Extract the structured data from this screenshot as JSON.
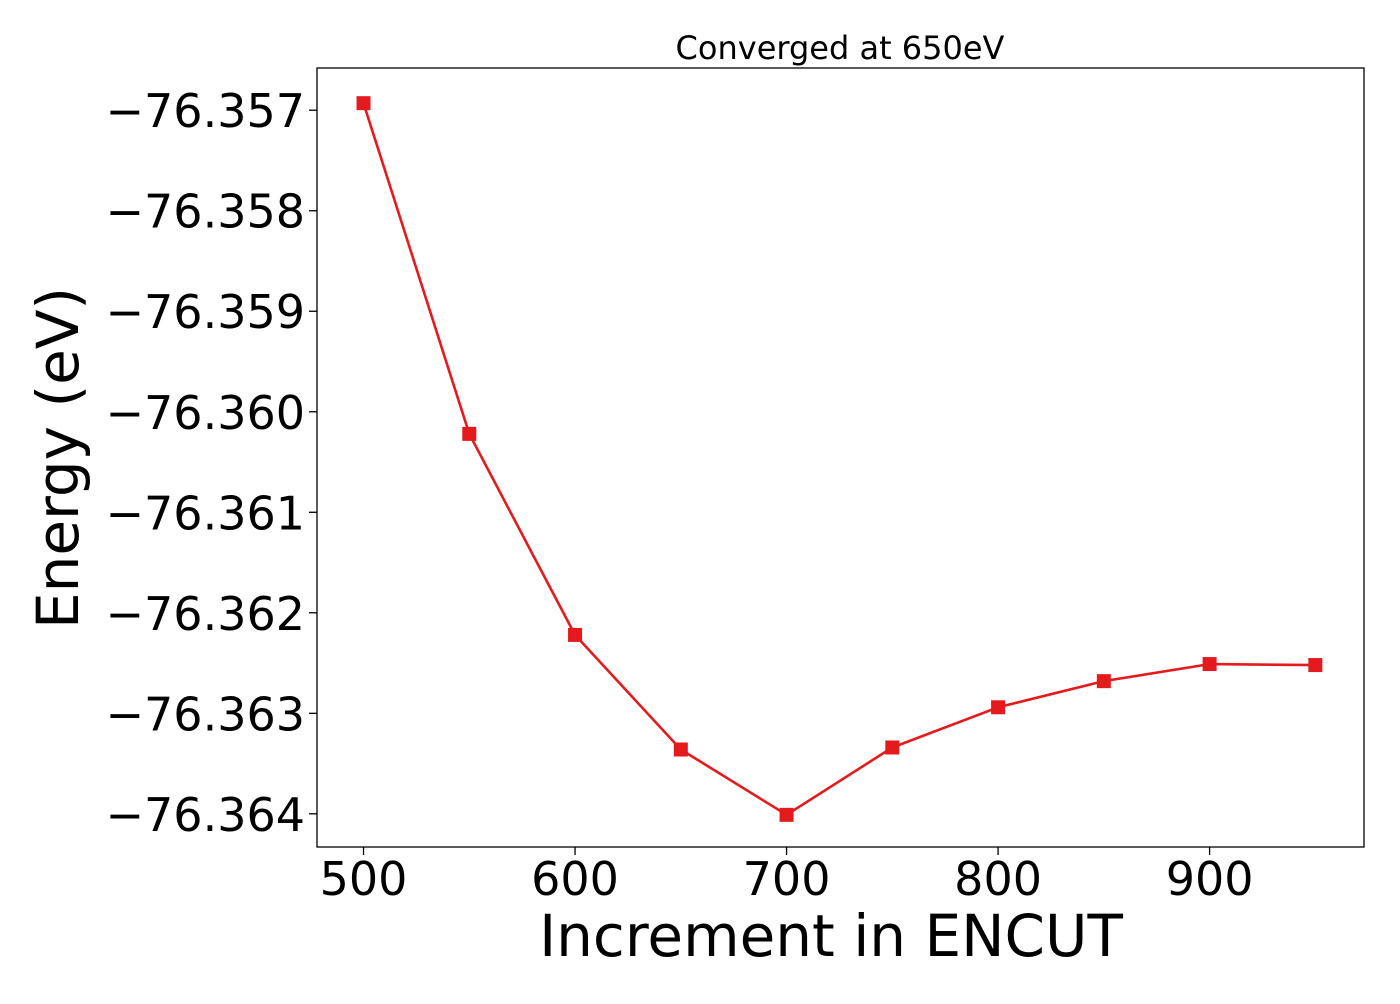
{
  "chart_data": {
    "type": "line",
    "title": "Converged at 650eV",
    "xlabel": "Increment in ENCUT",
    "ylabel": "Energy (eV)",
    "x": [
      500,
      550,
      600,
      650,
      700,
      750,
      800,
      850,
      900,
      950
    ],
    "series": [
      {
        "values": [
          -76.35693,
          -76.36022,
          -76.36222,
          -76.36336,
          -76.36401,
          -76.36334,
          -76.36294,
          -76.36268,
          -76.36251,
          -76.36252
        ],
        "color": "#e41a1c",
        "marker": "square"
      }
    ],
    "xlim": [
      478,
      973
    ],
    "ylim": [
      -76.36433,
      -76.35658
    ],
    "xticks": [
      500,
      600,
      700,
      800,
      900
    ],
    "xtick_labels": [
      "500",
      "600",
      "700",
      "800",
      "900"
    ],
    "yticks": [
      -76.357,
      -76.358,
      -76.359,
      -76.36,
      -76.361,
      -76.362,
      -76.363,
      -76.364
    ],
    "ytick_labels": [
      "−76.357",
      "−76.358",
      "−76.359",
      "−76.360",
      "−76.361",
      "−76.362",
      "−76.363",
      "−76.364"
    ],
    "grid": false,
    "legend": "none"
  }
}
